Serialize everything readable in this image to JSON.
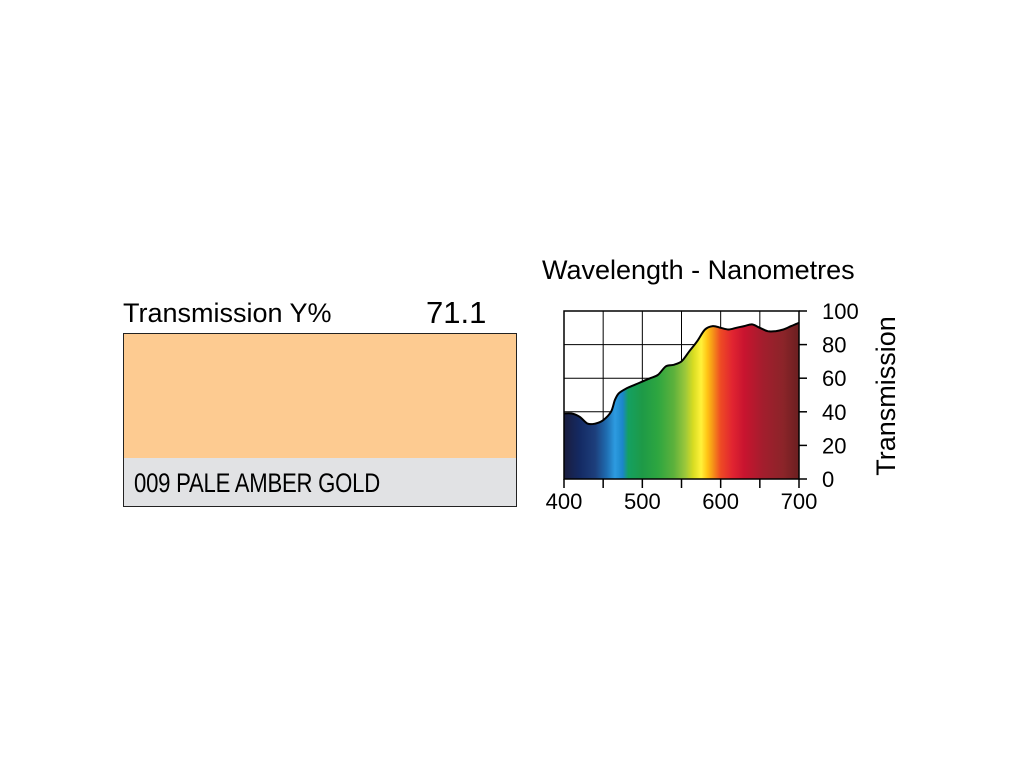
{
  "filter": {
    "transmission_label": "Transmission Y%",
    "transmission_value": "71.1",
    "swatch_color": "#fdcb91",
    "name": "009 PALE AMBER GOLD"
  },
  "chart_data": {
    "type": "area",
    "title": "Wavelength - Nanometres",
    "xlabel": "",
    "ylabel": "Transmission",
    "xlim": [
      400,
      700
    ],
    "ylim": [
      0,
      100
    ],
    "x_ticks": [
      400,
      500,
      600,
      700
    ],
    "y_ticks": [
      0,
      20,
      40,
      60,
      80,
      100
    ],
    "grid": true,
    "fill": "visible-spectrum gradient",
    "series": [
      {
        "x": [
          400,
          410,
          420,
          430,
          440,
          450,
          460,
          465,
          470,
          480,
          490,
          500,
          510,
          520,
          530,
          540,
          550,
          560,
          570,
          580,
          590,
          600,
          610,
          620,
          630,
          640,
          650,
          660,
          670,
          680,
          690,
          700
        ],
        "y": [
          39,
          39,
          37,
          33,
          33,
          35,
          40,
          47,
          51,
          54,
          56,
          58,
          60,
          62,
          67,
          68,
          70,
          76,
          82,
          89,
          91,
          90,
          89,
          90,
          91,
          92,
          90,
          88,
          88,
          89,
          91,
          93
        ]
      }
    ]
  }
}
